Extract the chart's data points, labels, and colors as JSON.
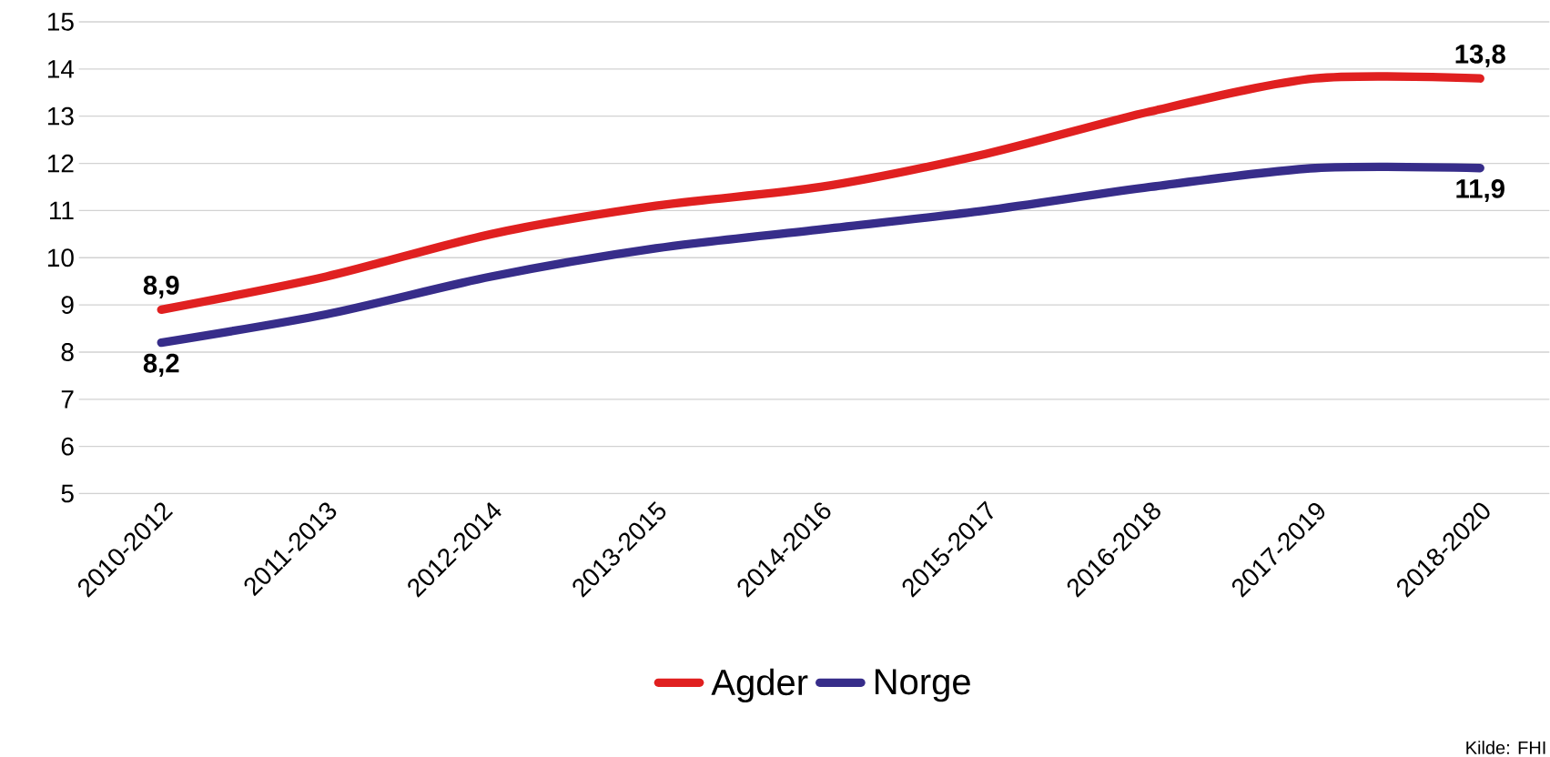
{
  "chart_data": {
    "type": "line",
    "categories": [
      "2010-2012",
      "2011-2013",
      "2012-2014",
      "2013-2015",
      "2014-2016",
      "2015-2017",
      "2016-2018",
      "2017-2019",
      "2018-2020"
    ],
    "series": [
      {
        "name": "Agder",
        "color": "#e02020",
        "values": [
          8.9,
          9.6,
          10.5,
          11.1,
          11.5,
          12.2,
          13.1,
          13.8,
          13.8
        ],
        "value_labels": [
          "8,9",
          null,
          null,
          null,
          null,
          null,
          null,
          null,
          "13,8"
        ]
      },
      {
        "name": "Norge",
        "color": "#372d8a",
        "values": [
          8.2,
          8.8,
          9.6,
          10.2,
          10.6,
          11.0,
          11.5,
          11.9,
          11.9
        ],
        "value_labels": [
          "8,2",
          null,
          null,
          null,
          null,
          null,
          null,
          null,
          "11,9"
        ]
      }
    ],
    "ylim": [
      5,
      15
    ],
    "yticks": [
      5,
      6,
      7,
      8,
      9,
      10,
      11,
      12,
      13,
      14,
      15
    ],
    "grid": "y",
    "legend": "bottom",
    "marker": "none",
    "line_style": "solid",
    "annotations": [
      "Kilde: FHI"
    ]
  }
}
